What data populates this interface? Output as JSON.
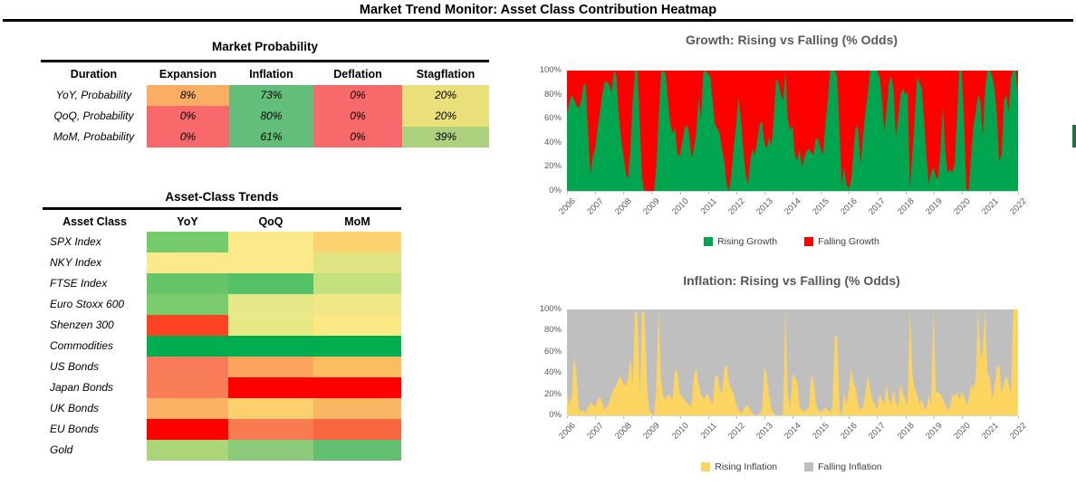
{
  "header": {
    "title": "Market Trend Monitor: Asset Class Contribution Heatmap"
  },
  "market_probability": {
    "title": "Market Probability",
    "columns": [
      "Duration",
      "Expansion",
      "Inflation",
      "Deflation",
      "Stagflation"
    ],
    "rows": [
      {
        "label": "YoY, Probability",
        "cells": [
          {
            "value": "8%",
            "color": "#FAAE64"
          },
          {
            "value": "73%",
            "color": "#63BE7B"
          },
          {
            "value": "0%",
            "color": "#F8696B"
          },
          {
            "value": "20%",
            "color": "#E9E07C"
          }
        ]
      },
      {
        "label": "QoQ, Probability",
        "cells": [
          {
            "value": "0%",
            "color": "#F8696B"
          },
          {
            "value": "80%",
            "color": "#63BE7B"
          },
          {
            "value": "0%",
            "color": "#F8696B"
          },
          {
            "value": "20%",
            "color": "#E9E07C"
          }
        ]
      },
      {
        "label": "MoM, Probability",
        "cells": [
          {
            "value": "0%",
            "color": "#F8696B"
          },
          {
            "value": "61%",
            "color": "#63BE7B"
          },
          {
            "value": "0%",
            "color": "#F8696B"
          },
          {
            "value": "39%",
            "color": "#ACD07D"
          }
        ]
      }
    ]
  },
  "asset_trends": {
    "title": "Asset-Class Trends",
    "columns": [
      "Asset Class",
      "YoY",
      "QoQ",
      "MoM"
    ],
    "rows": [
      {
        "label": "SPX Index",
        "colors": [
          "#76CB6B",
          "#FBE98A",
          "#FCD16F"
        ]
      },
      {
        "label": "NKY Index",
        "colors": [
          "#FBEA8B",
          "#FBEA8B",
          "#DFE382"
        ]
      },
      {
        "label": "FTSE Index",
        "colors": [
          "#66C568",
          "#55C167",
          "#C2E07E"
        ]
      },
      {
        "label": "Euro Stoxx 600",
        "colors": [
          "#79CB6C",
          "#E6E786",
          "#F0E886"
        ]
      },
      {
        "label": "Shenzen 300",
        "colors": [
          "#FE4425",
          "#E8E886",
          "#FBE986"
        ]
      },
      {
        "label": "Commodities",
        "colors": [
          "#00AE50",
          "#00AE50",
          "#00AE50"
        ]
      },
      {
        "label": "US Bonds",
        "colors": [
          "#F87C5A",
          "#FBA55D",
          "#FCBD62"
        ]
      },
      {
        "label": "Japan Bonds",
        "colors": [
          "#F97D56",
          "#FE0000",
          "#FE0000"
        ]
      },
      {
        "label": "UK Bonds",
        "colors": [
          "#FBB265",
          "#FDCF6F",
          "#FBB864"
        ]
      },
      {
        "label": "EU Bonds",
        "colors": [
          "#FE0000",
          "#F87B52",
          "#F7663F"
        ]
      },
      {
        "label": "Gold",
        "colors": [
          "#ABD579",
          "#8CCB79",
          "#63BE72"
        ]
      }
    ]
  },
  "chart_data": [
    {
      "id": "growth",
      "type": "area",
      "stacked_to_100_pct": true,
      "title": "Growth: Rising vs Falling (% Odds)",
      "frequency": "monthly",
      "x_range": [
        "2006",
        "2022"
      ],
      "x_ticks": [
        "2006",
        "2007",
        "2008",
        "2009",
        "2010",
        "2011",
        "2012",
        "2013",
        "2014",
        "2015",
        "2016",
        "2017",
        "2018",
        "2019",
        "2020",
        "2021",
        "2022"
      ],
      "y_ticks": [
        "100%",
        "80%",
        "60%",
        "40%",
        "20%",
        "0%"
      ],
      "ylim": [
        0,
        100
      ],
      "legend_position": "bottom",
      "series": [
        {
          "name": "Rising Growth",
          "color": "#00A550",
          "values": [
            65,
            73,
            80,
            76,
            71,
            69,
            75,
            88,
            89,
            48,
            13,
            28,
            35,
            52,
            65,
            80,
            90,
            91,
            88,
            82,
            100,
            96,
            65,
            45,
            30,
            15,
            10,
            35,
            75,
            100,
            100,
            55,
            10,
            0,
            0,
            0,
            0,
            0,
            20,
            60,
            98,
            100,
            97,
            75,
            55,
            48,
            52,
            30,
            29,
            40,
            52,
            55,
            48,
            28,
            35,
            48,
            78,
            60,
            98,
            100,
            97,
            95,
            75,
            55,
            52,
            48,
            35,
            25,
            5,
            0,
            15,
            38,
            55,
            78,
            60,
            35,
            15,
            5,
            25,
            35,
            30,
            42,
            55,
            58,
            40,
            35,
            45,
            38,
            60,
            93,
            90,
            80,
            75,
            100,
            60,
            50,
            55,
            30,
            25,
            35,
            20,
            28,
            33,
            35,
            32,
            30,
            45,
            42,
            35,
            30,
            55,
            75,
            100,
            100,
            100,
            95,
            50,
            5,
            20,
            5,
            2,
            10,
            35,
            55,
            50,
            22,
            45,
            65,
            80,
            100,
            100,
            100,
            100,
            95,
            80,
            50,
            65,
            90,
            95,
            85,
            45,
            60,
            80,
            85,
            80,
            82,
            2,
            30,
            60,
            95,
            90,
            85,
            60,
            30,
            5,
            15,
            20,
            12,
            10,
            35,
            70,
            35,
            15,
            18,
            15,
            22,
            60,
            100,
            100,
            60,
            2,
            0,
            30,
            55,
            65,
            80,
            75,
            45,
            85,
            100,
            100,
            95,
            85,
            65,
            25,
            30,
            75,
            80,
            65,
            95,
            100,
            100,
            80
          ]
        },
        {
          "name": "Falling Growth",
          "color": "#FE0000",
          "derived_from": "100 minus Rising Growth (stacked to 100%)"
        }
      ]
    },
    {
      "id": "inflation",
      "type": "area",
      "stacked_to_100_pct": true,
      "title": "Inflation: Rising vs Falling  (% Odds)",
      "frequency": "monthly",
      "x_range": [
        "2006",
        "2022"
      ],
      "x_ticks": [
        "2006",
        "2007",
        "2008",
        "2009",
        "2010",
        "2011",
        "2012",
        "2013",
        "2014",
        "2015",
        "2016",
        "2017",
        "2018",
        "2019",
        "2020",
        "2021",
        "2022"
      ],
      "y_ticks": [
        "100%",
        "80%",
        "60%",
        "40%",
        "20%",
        "0%"
      ],
      "ylim": [
        0,
        100
      ],
      "legend_position": "bottom",
      "series": [
        {
          "name": "Rising Inflation",
          "color": "#FBD560",
          "values": [
            22,
            10,
            15,
            57,
            40,
            8,
            3,
            5,
            2,
            8,
            12,
            10,
            8,
            15,
            18,
            12,
            5,
            8,
            12,
            20,
            25,
            28,
            35,
            37,
            30,
            28,
            35,
            55,
            30,
            100,
            95,
            20,
            100,
            95,
            30,
            5,
            2,
            0,
            25,
            100,
            35,
            18,
            15,
            20,
            18,
            15,
            45,
            40,
            20,
            18,
            15,
            12,
            10,
            8,
            37,
            45,
            30,
            20,
            15,
            18,
            20,
            15,
            10,
            37,
            38,
            25,
            20,
            45,
            47,
            30,
            25,
            20,
            10,
            5,
            2,
            5,
            8,
            10,
            5,
            2,
            0,
            0,
            2,
            5,
            46,
            38,
            20,
            5,
            2,
            0,
            0,
            0,
            2,
            100,
            20,
            5,
            40,
            35,
            33,
            8,
            5,
            3,
            5,
            8,
            38,
            33,
            10,
            5,
            3,
            5,
            8,
            5,
            3,
            8,
            75,
            75,
            5,
            0,
            22,
            10,
            25,
            45,
            30,
            25,
            10,
            5,
            8,
            20,
            38,
            25,
            15,
            10,
            5,
            20,
            15,
            10,
            28,
            15,
            10,
            25,
            12,
            8,
            30,
            20,
            15,
            10,
            100,
            40,
            25,
            20,
            10,
            15,
            8,
            5,
            20,
            10,
            100,
            22,
            22,
            20,
            15,
            10,
            5,
            8,
            20,
            18,
            22,
            15,
            22,
            18,
            10,
            15,
            30,
            25,
            35,
            100,
            55,
            60,
            100,
            40,
            35,
            15,
            28,
            45,
            48,
            20,
            30,
            38,
            30,
            20,
            100,
            100,
            100
          ]
        },
        {
          "name": "Falling Inflation",
          "color": "#BFBFBF",
          "derived_from": "100 minus Rising Inflation (stacked to 100%)"
        }
      ]
    }
  ],
  "misc": {
    "right_edge_bar_color": "#1F7246"
  }
}
